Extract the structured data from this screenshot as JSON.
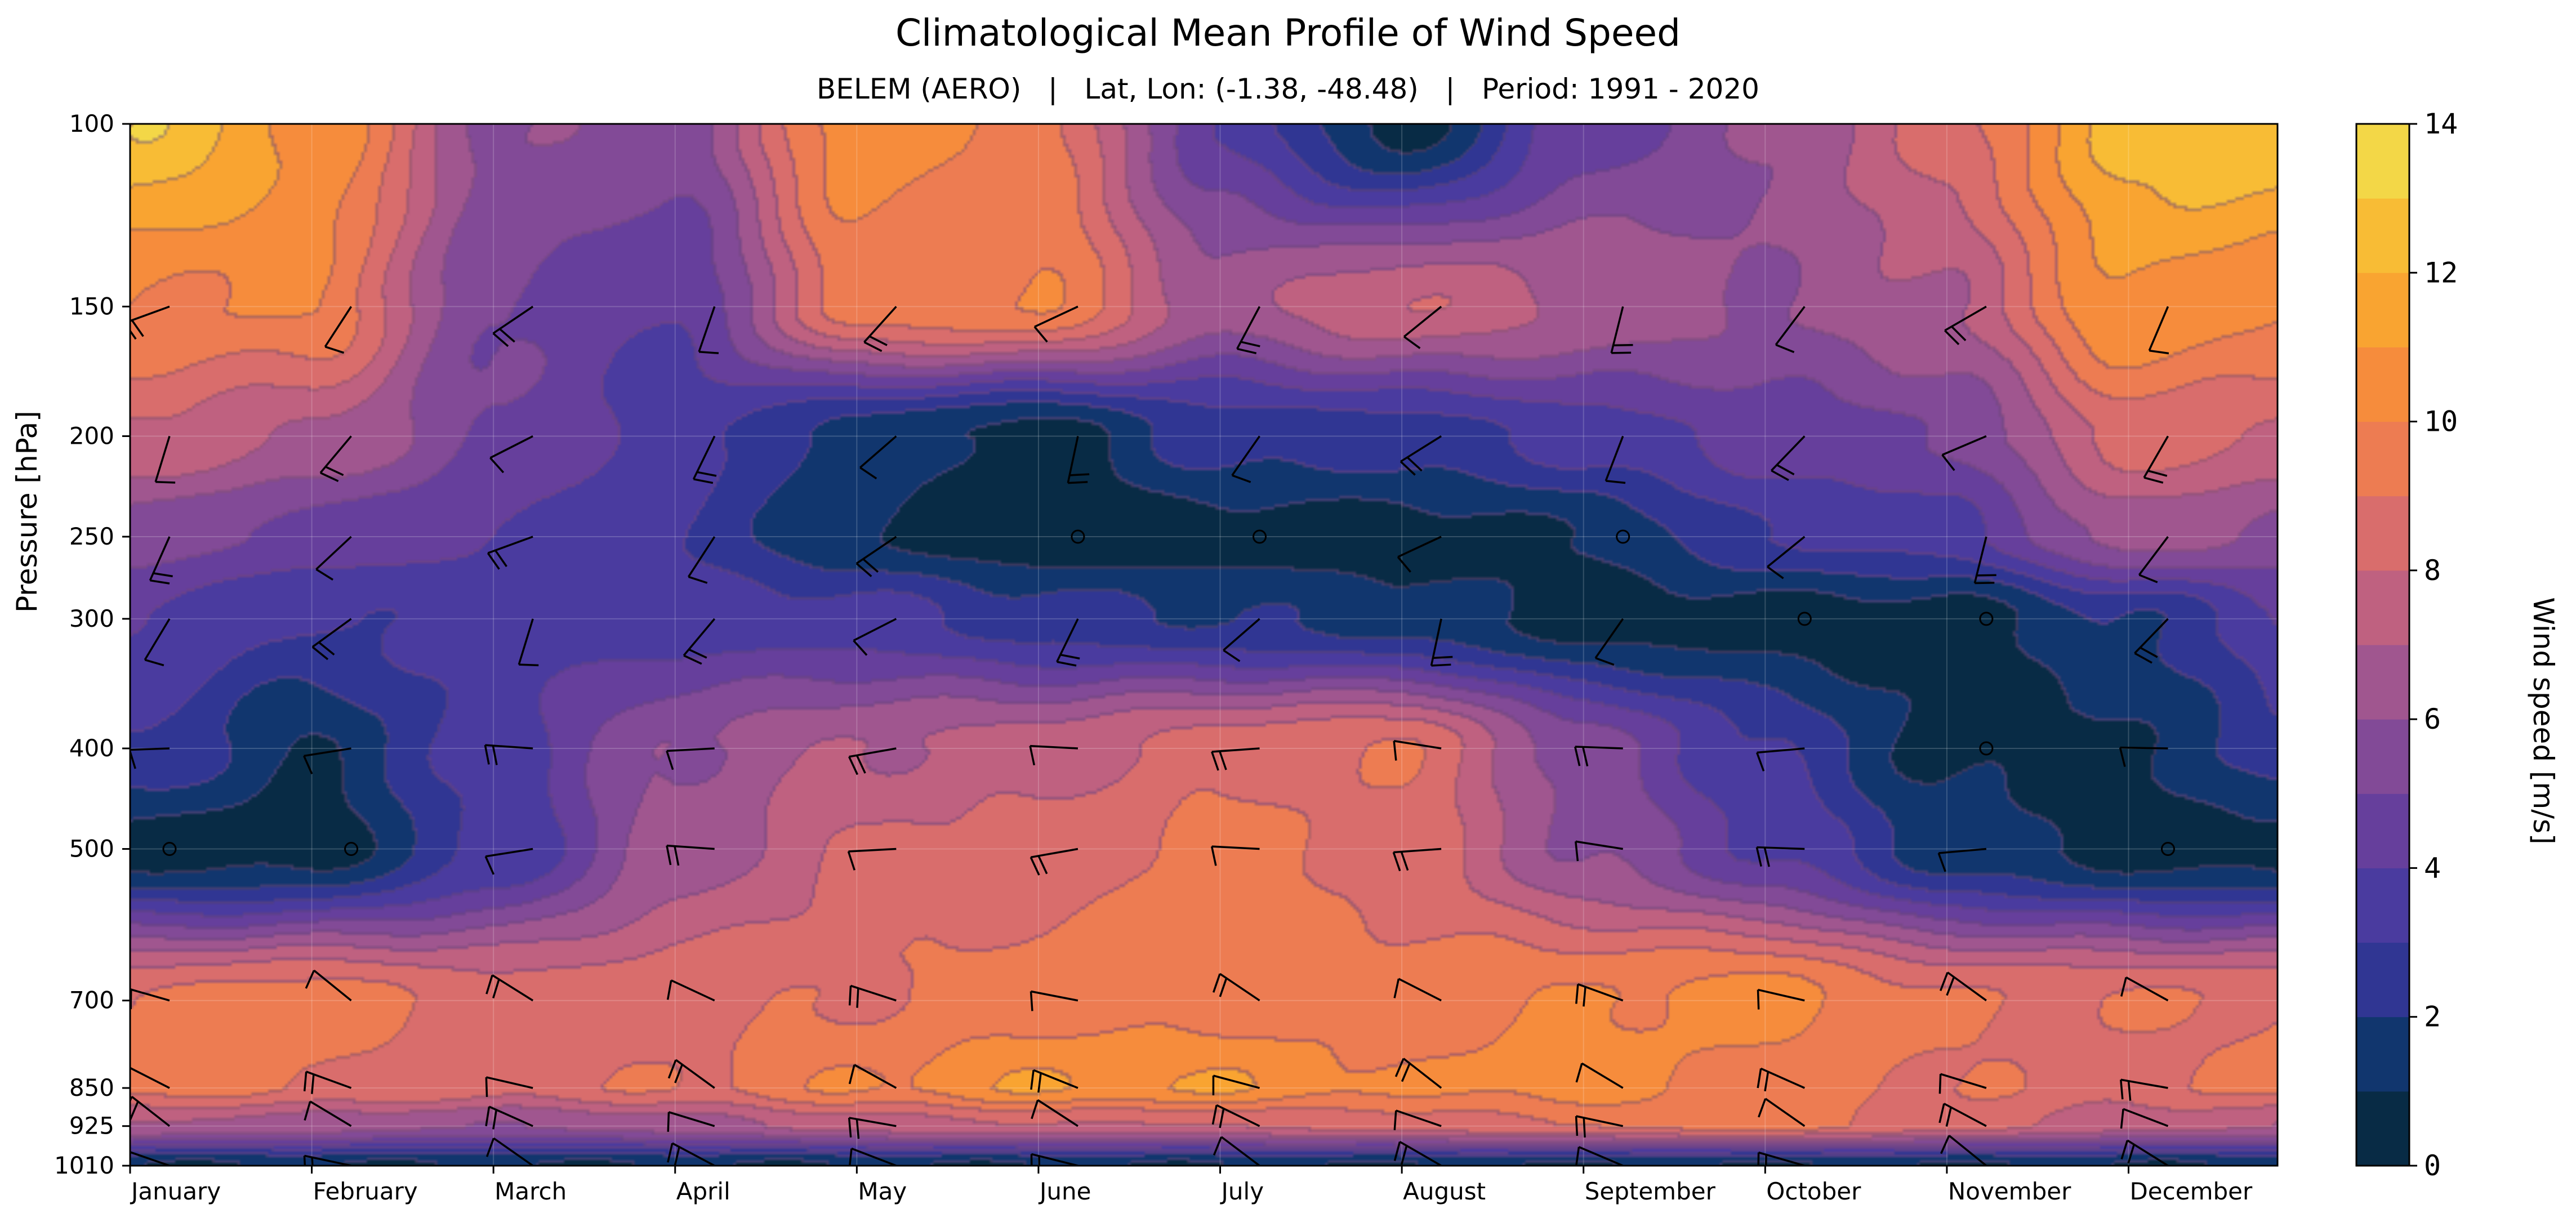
{
  "chart_data": {
    "type": "heatmap",
    "title": "Climatological Mean Profile of Wind Speed",
    "subtitle": "BELEM (AERO)   |   Lat, Lon: (-1.38, -48.48)   |   Period: 1991 - 2020",
    "xlabel": "",
    "ylabel": "Pressure [hPa]",
    "colorbar_label": "Wind speed [m/s]",
    "months": [
      "January",
      "February",
      "March",
      "April",
      "May",
      "June",
      "July",
      "August",
      "September",
      "October",
      "November",
      "December"
    ],
    "pressure_levels": [
      100,
      150,
      200,
      250,
      300,
      400,
      500,
      700,
      850,
      925,
      1010
    ],
    "colorbar_ticks": [
      0,
      2,
      4,
      6,
      8,
      10,
      12,
      14
    ],
    "contour_levels": [
      0,
      1,
      2,
      3,
      4,
      5,
      6,
      7,
      8,
      9,
      10,
      11,
      12,
      13,
      14
    ],
    "colormap": [
      "#082b45",
      "#11366e",
      "#303693",
      "#4a3b9f",
      "#663f9c",
      "#824a97",
      "#a0568f",
      "#bf6180",
      "#d96d6c",
      "#ed7c52",
      "#f68c3c",
      "#f9a431",
      "#f8bc35",
      "#f3d747",
      "#e9ef55"
    ],
    "y_scale": "log",
    "y_inverted": true,
    "grid": true,
    "wind_speed_ms": [
      [
        13.0,
        11.0,
        6.0,
        5.5,
        10.5,
        9.5,
        4.0,
        0.5,
        4.5,
        6.0,
        8.5,
        12.5
      ],
      [
        10.0,
        10.0,
        5.0,
        4.0,
        9.5,
        10.0,
        6.5,
        8.0,
        7.0,
        6.0,
        7.0,
        11.0
      ],
      [
        8.0,
        7.0,
        5.0,
        3.5,
        1.5,
        0.5,
        2.5,
        2.5,
        3.5,
        4.5,
        5.0,
        8.5
      ],
      [
        5.5,
        4.5,
        4.0,
        3.0,
        1.0,
        0.3,
        0.5,
        0.5,
        1.0,
        3.0,
        3.5,
        6.5
      ],
      [
        4.0,
        3.0,
        3.5,
        3.5,
        3.5,
        2.5,
        2.0,
        1.5,
        0.5,
        0.5,
        0.5,
        2.0
      ],
      [
        3.0,
        1.0,
        3.5,
        6.0,
        7.0,
        7.5,
        8.5,
        9.0,
        5.5,
        3.0,
        0.7,
        0.8
      ],
      [
        0.5,
        0.5,
        3.0,
        6.5,
        8.0,
        8.5,
        9.5,
        8.5,
        6.0,
        4.0,
        1.5,
        0.5
      ],
      [
        9.0,
        9.5,
        8.5,
        8.5,
        9.0,
        9.5,
        9.5,
        9.5,
        10.0,
        10.5,
        9.0,
        9.0
      ],
      [
        9.5,
        9.0,
        8.5,
        9.0,
        10.0,
        11.0,
        11.0,
        10.0,
        10.5,
        9.5,
        9.0,
        8.5
      ],
      [
        7.0,
        6.5,
        6.0,
        6.5,
        7.5,
        8.0,
        8.0,
        8.5,
        9.0,
        9.5,
        8.5,
        7.5
      ],
      [
        1.0,
        1.0,
        1.0,
        1.0,
        1.0,
        1.0,
        1.0,
        1.0,
        1.0,
        1.0,
        1.0,
        1.0
      ]
    ],
    "wind_barbs": {
      "levels": [
        150,
        200,
        250,
        300,
        400,
        500,
        700,
        850,
        925,
        1010
      ],
      "calm_marker": "circle",
      "calm_points": [
        [
          "June",
          250
        ],
        [
          "July",
          250
        ],
        [
          "September",
          250
        ],
        [
          "October",
          300
        ],
        [
          "November",
          300
        ],
        [
          "November",
          400
        ],
        [
          "January",
          500
        ],
        [
          "February",
          500
        ],
        [
          "December",
          500
        ]
      ]
    }
  }
}
